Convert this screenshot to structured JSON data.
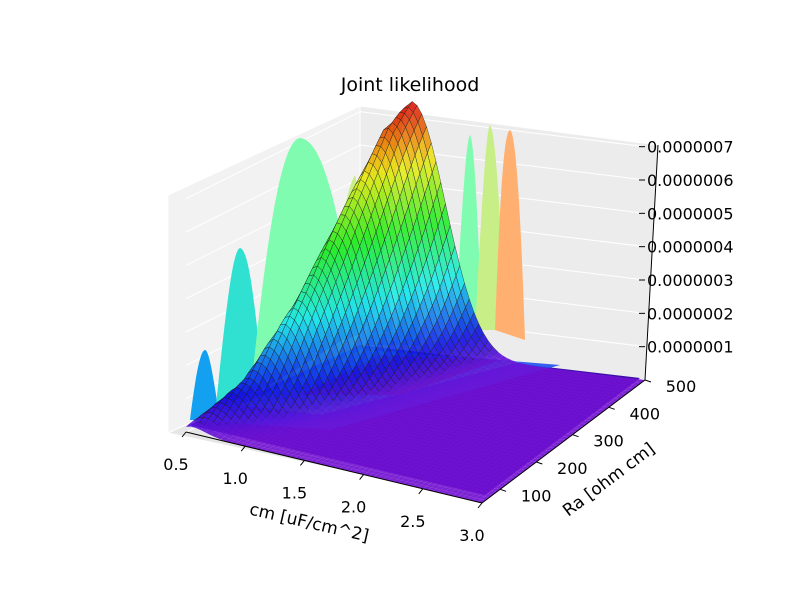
{
  "chart_data": {
    "type": "surface3d",
    "title": "Joint likelihood",
    "xlabel": "cm [uF/cm^2]",
    "ylabel": "Ra [ohm cm]",
    "zlabel": "",
    "x_ticks": [
      "0.5",
      "1.0",
      "1.5",
      "2.0",
      "2.5",
      "3.0"
    ],
    "y_ticks": [
      "100",
      "200",
      "300",
      "400",
      "500"
    ],
    "z_ticks": [
      "0.0000001",
      "0.0000002",
      "0.0000003",
      "0.0000004",
      "0.0000005",
      "0.0000006",
      "0.0000007"
    ],
    "xlim": [
      0.5,
      3.0
    ],
    "ylim": [
      50,
      500
    ],
    "zlim": [
      0,
      7.5e-07
    ],
    "surface": {
      "peak": {
        "cm": 0.95,
        "Ra": 500,
        "z": 7.5e-07
      },
      "ridge_description_values": [
        {
          "cm": 0.55,
          "Ra": 50,
          "z": 2e-08
        },
        {
          "cm": 0.7,
          "Ra": 150,
          "z": 1.2e-07
        },
        {
          "cm": 0.8,
          "Ra": 250,
          "z": 3e-07
        },
        {
          "cm": 0.85,
          "Ra": 350,
          "z": 5e-07
        },
        {
          "cm": 0.9,
          "Ra": 450,
          "z": 7e-07
        },
        {
          "cm": 0.95,
          "Ra": 500,
          "z": 7.5e-07
        }
      ],
      "colormap": "rainbow",
      "grid": true
    },
    "projections": {
      "x_wall": "marginal curves in cyan/green on back-left wall",
      "y_wall": "marginal curves on back-right wall",
      "floor": "filled contour of likelihood on the z=0 plane"
    }
  }
}
